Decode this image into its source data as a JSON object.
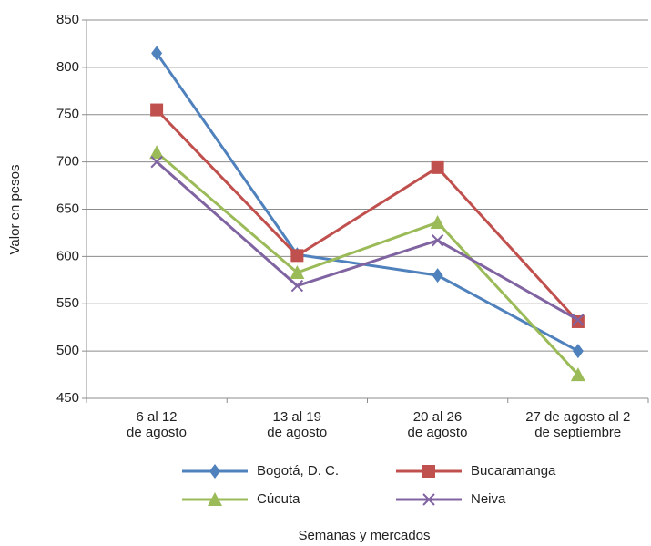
{
  "chart_data": {
    "type": "line",
    "x_label": "Semanas y mercados",
    "y_label": "Valor en pesos",
    "categories": [
      "6 al 12\nde agosto",
      "13 al 19\nde agosto",
      "20 al 26\nde agosto",
      "27 de agosto al 2\nde septiembre"
    ],
    "series": [
      {
        "name": "Bogotá, D. C.",
        "color": "#4f81bd",
        "marker": "diamond",
        "values": [
          815,
          602,
          580,
          500
        ]
      },
      {
        "name": "Bucaramanga",
        "color": "#c0504d",
        "marker": "square",
        "values": [
          755,
          601,
          694,
          531
        ]
      },
      {
        "name": "Cúcuta",
        "color": "#9bbb59",
        "marker": "triangle",
        "values": [
          710,
          583,
          636,
          475
        ]
      },
      {
        "name": "Neiva",
        "color": "#8064a2",
        "marker": "x",
        "values": [
          700,
          569,
          617,
          533
        ]
      }
    ],
    "ylim": [
      450,
      850
    ],
    "yticks": [
      450,
      500,
      550,
      600,
      650,
      700,
      750,
      800,
      850
    ],
    "grid": true
  }
}
